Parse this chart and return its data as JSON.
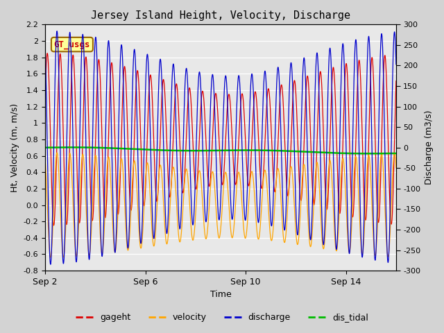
{
  "title": "Jersey Island Height, Velocity, Discharge",
  "xlabel": "Time",
  "ylabel_left": "Ht, Velocity (m, m/s)",
  "ylabel_right": "Discharge (m3/s)",
  "ylim_left": [
    -0.8,
    2.2
  ],
  "ylim_right": [
    -300,
    300
  ],
  "yticks_left": [
    -0.8,
    -0.6,
    -0.4,
    -0.2,
    0.0,
    0.2,
    0.4,
    0.6,
    0.8,
    1.0,
    1.2,
    1.4,
    1.6,
    1.8,
    2.0,
    2.2
  ],
  "yticks_right": [
    -300,
    -250,
    -200,
    -150,
    -100,
    -50,
    0,
    50,
    100,
    150,
    200,
    250,
    300
  ],
  "xtick_labels": [
    "Sep 2",
    "Sep 6",
    "Sep 10",
    "Sep 14"
  ],
  "xtick_positions": [
    0,
    96,
    192,
    288
  ],
  "xlim": [
    0,
    336
  ],
  "legend_labels": [
    "gageht",
    "velocity",
    "discharge",
    "dis_tidal"
  ],
  "legend_colors": [
    "#dd0000",
    "#ffa500",
    "#0000cc",
    "#00bb00"
  ],
  "annotation_text": "GT_usgs",
  "annotation_bg": "#ffff99",
  "annotation_border": "#996600",
  "background_color": "#d3d3d3",
  "plot_bg": "#e8e8e8",
  "color_gageht": "#dd0000",
  "color_velocity": "#ffa500",
  "color_discharge": "#0000cc",
  "color_dis_tidal": "#00bb00",
  "period_m2_hours": 12.42,
  "period_s2_hours": 12.0,
  "total_hours": 336,
  "n_points": 3000
}
